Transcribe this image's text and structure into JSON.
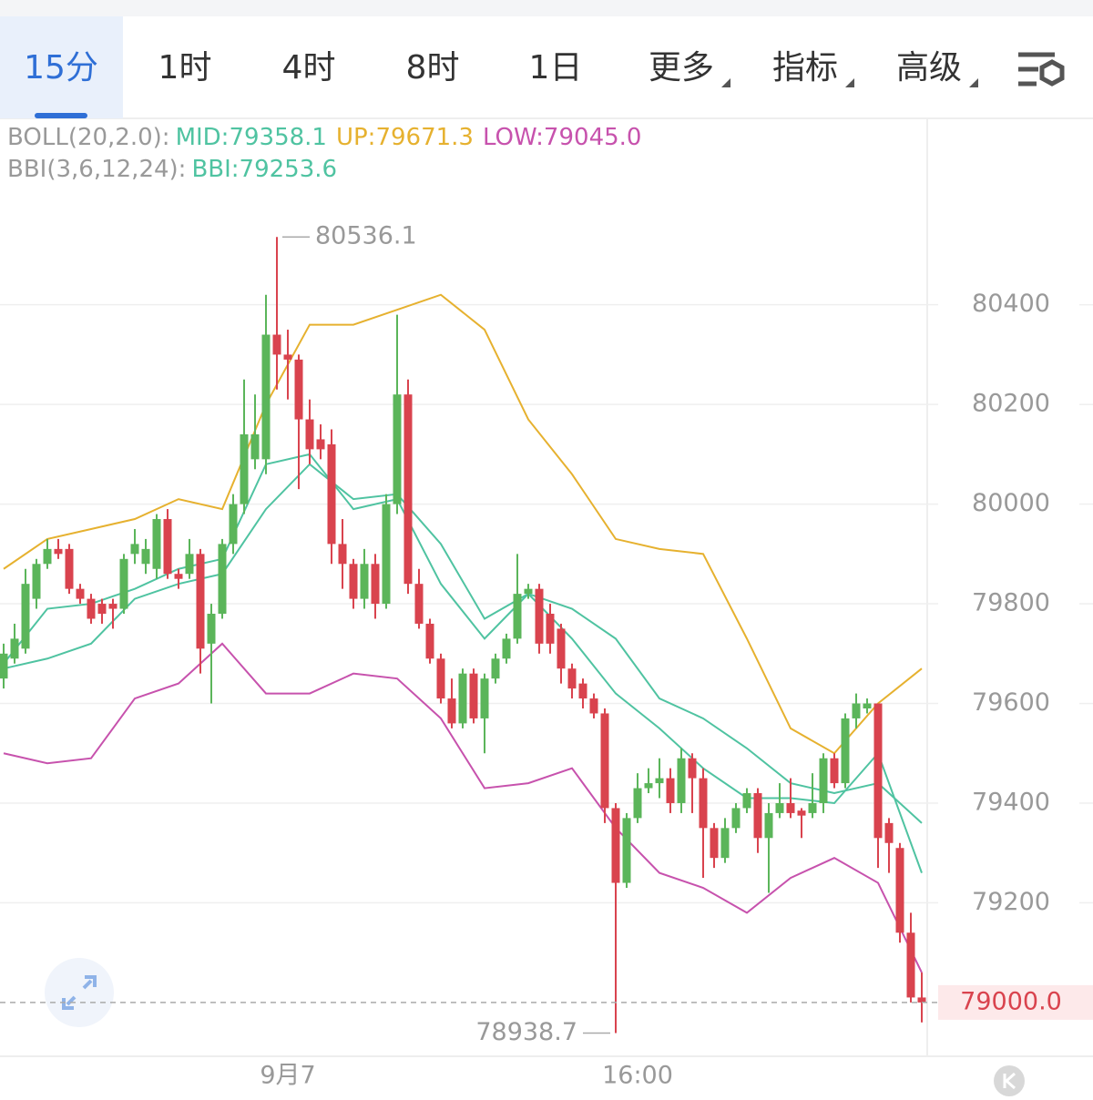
{
  "tabs": [
    {
      "label": "15分",
      "menu": false
    },
    {
      "label": "1时",
      "menu": false
    },
    {
      "label": "4时",
      "menu": false
    },
    {
      "label": "8时",
      "menu": false
    },
    {
      "label": "1日",
      "menu": false
    },
    {
      "label": "更多",
      "menu": true
    },
    {
      "label": "指标",
      "menu": true
    },
    {
      "label": "高级",
      "menu": true
    }
  ],
  "active_tab": 0,
  "chart_data": {
    "type": "candlestick",
    "indicators": [
      {
        "name": "BOLL(20,2.0):",
        "items": [
          {
            "text": "MID:79358.1",
            "color": "#4fc3a1"
          },
          {
            "text": "UP:79671.3",
            "color": "#e6b12f"
          },
          {
            "text": "LOW:79045.0",
            "color": "#c752ad"
          }
        ]
      },
      {
        "name": "BBI(3,6,12,24):",
        "items": [
          {
            "text": "BBI:79253.6",
            "color": "#4fc3a1"
          }
        ]
      }
    ],
    "categories": [
      null,
      null,
      null,
      null,
      null,
      null,
      null,
      null,
      null,
      null,
      null,
      null,
      null,
      null,
      null,
      null,
      null,
      null,
      null,
      null,
      null,
      null,
      null,
      null,
      null,
      null,
      "9月7",
      null,
      null,
      null,
      null,
      null,
      null,
      null,
      null,
      null,
      null,
      null,
      null,
      null,
      null,
      null,
      null,
      null,
      null,
      null,
      null,
      null,
      null,
      null,
      null,
      null,
      null,
      null,
      null,
      null,
      null,
      null,
      "16:00",
      null,
      null,
      null,
      null,
      null,
      null,
      null,
      null,
      null,
      null,
      null,
      null,
      null,
      null,
      null,
      null,
      null,
      null,
      null,
      null,
      null,
      null,
      null,
      null,
      null,
      null
    ],
    "open": [
      79650,
      79690,
      79710,
      79810,
      79880,
      79910,
      79910,
      79830,
      79810,
      79800,
      79800,
      79790,
      79900,
      79880,
      79870,
      79970,
      79860,
      79860,
      79900,
      79720,
      79780,
      79920,
      80000,
      80090,
      80090,
      80340,
      80300,
      80290,
      80170,
      80130,
      80120,
      79920,
      79880,
      79810,
      79880,
      79800,
      80000,
      80220,
      79840,
      79760,
      79690,
      79610,
      79560,
      79660,
      79570,
      79650,
      79690,
      79730,
      79820,
      79830,
      79780,
      79750,
      79670,
      79640,
      79610,
      79580,
      79390,
      79240,
      79370,
      79430,
      79440,
      79450,
      79400,
      79490,
      79450,
      79350,
      79290,
      79350,
      79390,
      79420,
      79330,
      79380,
      79400,
      79385,
      79380,
      79400,
      79490,
      79440,
      79570,
      79590,
      79600,
      79360,
      79310,
      79140,
      79010
    ],
    "high": [
      79720,
      79760,
      79870,
      79890,
      79930,
      79930,
      79920,
      79840,
      79820,
      79810,
      79810,
      79900,
      79950,
      79930,
      79980,
      79990,
      79870,
      79930,
      79910,
      79800,
      79930,
      80020,
      80250,
      80220,
      80420,
      80536.1,
      80350,
      80300,
      80210,
      80160,
      80150,
      79970,
      79890,
      79910,
      79900,
      80020,
      80380,
      80250,
      79870,
      79770,
      79700,
      79650,
      79670,
      79670,
      79660,
      79700,
      79740,
      79900,
      79840,
      79840,
      79800,
      79760,
      79680,
      79650,
      79620,
      79590,
      79400,
      79380,
      79460,
      79470,
      79490,
      79470,
      79510,
      79500,
      79470,
      79360,
      79370,
      79400,
      79430,
      79430,
      79400,
      79440,
      79450,
      79390,
      79460,
      79500,
      79500,
      79580,
      79620,
      79610,
      79600,
      79370,
      79320,
      79180,
      79060
    ],
    "low": [
      79630,
      79680,
      79700,
      79790,
      79870,
      79890,
      79820,
      79800,
      79760,
      79760,
      79750,
      79780,
      79880,
      79860,
      79850,
      79850,
      79830,
      79850,
      79660,
      79600,
      79770,
      79900,
      79980,
      80070,
      80060,
      80230,
      80210,
      80030,
      80080,
      80090,
      79880,
      79830,
      79790,
      79790,
      79770,
      79790,
      79980,
      79820,
      79750,
      79680,
      79600,
      79550,
      79550,
      79560,
      79500,
      79640,
      79680,
      79720,
      79810,
      79700,
      79700,
      79640,
      79610,
      79590,
      79570,
      79360,
      78938.7,
      79230,
      79360,
      79420,
      79410,
      79380,
      79380,
      79380,
      79250,
      79270,
      79280,
      79340,
      79380,
      79300,
      79220,
      79370,
      79370,
      79330,
      79370,
      79380,
      79430,
      79430,
      79550,
      79580,
      79270,
      79260,
      79120,
      79000,
      78960
    ],
    "close": [
      79700,
      79730,
      79840,
      79880,
      79910,
      79900,
      79830,
      79810,
      79770,
      79780,
      79790,
      79890,
      79920,
      79910,
      79970,
      79860,
      79850,
      79900,
      79710,
      79780,
      79920,
      80000,
      80140,
      80140,
      80340,
      80300,
      80290,
      80170,
      80110,
      80110,
      79920,
      79880,
      79810,
      79880,
      79800,
      80000,
      80220,
      79840,
      79760,
      79690,
      79610,
      79560,
      79660,
      79570,
      79650,
      79690,
      79730,
      79820,
      79830,
      79720,
      79720,
      79670,
      79630,
      79610,
      79580,
      79390,
      79240,
      79370,
      79430,
      79440,
      79450,
      79400,
      79490,
      79450,
      79350,
      79290,
      79350,
      79390,
      79420,
      79330,
      79380,
      79400,
      79380,
      79375,
      79400,
      79490,
      79440,
      79570,
      79600,
      79600,
      79330,
      79320,
      79140,
      79010,
      79000
    ],
    "up_color": "#5bb55a",
    "down_color": "#d9434e",
    "lines": [
      {
        "color": "#e6b12f",
        "x": [
          0,
          4,
          8,
          12,
          16,
          20,
          24,
          28,
          32,
          36,
          40,
          44,
          48,
          52,
          56,
          60,
          64,
          68,
          72,
          76,
          80,
          84
        ],
        "values": [
          79870,
          79930,
          79950,
          79970,
          80010,
          79990,
          80200,
          80360,
          80360,
          80390,
          80420,
          80350,
          80170,
          80060,
          79930,
          79910,
          79900,
          79730,
          79550,
          79500,
          79600,
          79670
        ]
      },
      {
        "color": "#4fc3a1",
        "x": [
          0,
          4,
          8,
          12,
          16,
          20,
          24,
          28,
          32,
          36,
          40,
          44,
          48,
          52,
          56,
          60,
          64,
          68,
          72,
          76,
          80,
          84
        ],
        "values": [
          79670,
          79690,
          79720,
          79810,
          79840,
          79860,
          79990,
          80080,
          80010,
          80020,
          79920,
          79770,
          79820,
          79790,
          79730,
          79610,
          79570,
          79510,
          79440,
          79420,
          79440,
          79360
        ]
      },
      {
        "color": "#c752ad",
        "x": [
          0,
          4,
          8,
          12,
          16,
          20,
          24,
          28,
          32,
          36,
          40,
          44,
          48,
          52,
          56,
          60,
          64,
          68,
          72,
          76,
          80,
          84
        ],
        "values": [
          79500,
          79480,
          79490,
          79610,
          79640,
          79720,
          79620,
          79620,
          79660,
          79650,
          79570,
          79430,
          79440,
          79470,
          79350,
          79260,
          79230,
          79180,
          79250,
          79290,
          79240,
          79060
        ]
      },
      {
        "color": "#4fc3a1",
        "x": [
          0,
          4,
          8,
          12,
          16,
          20,
          24,
          28,
          32,
          36,
          40,
          44,
          48,
          52,
          56,
          60,
          64,
          68,
          72,
          76,
          80,
          84
        ],
        "values": [
          79680,
          79790,
          79800,
          79830,
          79870,
          79890,
          80080,
          80100,
          79990,
          80010,
          79840,
          79730,
          79820,
          79730,
          79620,
          79550,
          79470,
          79410,
          79410,
          79400,
          79500,
          79260
        ]
      }
    ],
    "max_label": "80536.1",
    "min_label": "78938.7",
    "ylim": [
      78892,
      80774
    ],
    "yticks": [
      79200,
      79400,
      79600,
      79800,
      80000,
      80200,
      80400
    ],
    "last_price": {
      "value": 79000,
      "label": "79000.0"
    },
    "grid": true
  }
}
